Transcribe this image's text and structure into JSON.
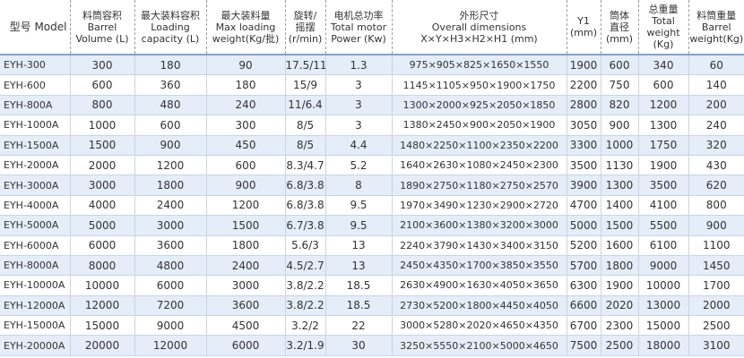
{
  "table": {
    "header": [
      [
        "型号 Model"
      ],
      [
        "料筒容积",
        "Barrel",
        "Volume (L)"
      ],
      [
        "最大装料容积",
        "Loading",
        "capacity (L)"
      ],
      [
        "最大装料量",
        "Max loading",
        "weight(Kg/批)"
      ],
      [
        "旋转/",
        "摇摆",
        "(r/min)"
      ],
      [
        "电机总功率",
        "Total motor",
        "Power (Kw)"
      ],
      [
        "外形尺寸",
        "Overall dimensions",
        "X×Y×H3×H2×H1 (mm)"
      ],
      [
        "Y1",
        "(mm)"
      ],
      [
        "筒体",
        "直径",
        "(mm)"
      ],
      [
        "总重量",
        "Total",
        "weight (Kg)"
      ],
      [
        "料筒重量",
        "Barrel",
        "weight(Kg)"
      ]
    ],
    "rows": [
      [
        "EYH-300",
        "300",
        "180",
        "90",
        "17.5/11",
        "1.3",
        "975×905×825×1650×1550",
        "1900",
        "600",
        "340",
        "60"
      ],
      [
        "EYH-600",
        "600",
        "360",
        "180",
        "15/9",
        "3",
        "1145×1105×950×1900×1750",
        "2200",
        "750",
        "600",
        "140"
      ],
      [
        "EYH-800A",
        "800",
        "480",
        "240",
        "11/6.4",
        "3",
        "1300×2000×925×2050×1850",
        "2800",
        "820",
        "1200",
        "200"
      ],
      [
        "EYH-1000A",
        "1000",
        "600",
        "300",
        "8/5",
        "3",
        "1380×2450×900×2050×1900",
        "3050",
        "900",
        "1300",
        "240"
      ],
      [
        "EYH-1500A",
        "1500",
        "900",
        "450",
        "8/5",
        "4.4",
        "1480×2250×1100×2350×2200",
        "3300",
        "1000",
        "1750",
        "320"
      ],
      [
        "EYH-2000A",
        "2000",
        "1200",
        "600",
        "8.3/4.7",
        "5.2",
        "1640×2630×1080×2450×2300",
        "3500",
        "1130",
        "1900",
        "430"
      ],
      [
        "EYH-3000A",
        "3000",
        "1800",
        "900",
        "6.8/3.8",
        "8",
        "1890×2750×1180×2750×2570",
        "3900",
        "1300",
        "3500",
        "620"
      ],
      [
        "EYH-4000A",
        "4000",
        "2400",
        "1200",
        "6.8/3.8",
        "9.5",
        "1970×3490×1230×2900×2720",
        "4700",
        "1400",
        "4100",
        "800"
      ],
      [
        "EYH-5000A",
        "5000",
        "3000",
        "1500",
        "6.7/3.8",
        "9.5",
        "2100×3600×1380×3200×3000",
        "5000",
        "1500",
        "5500",
        "900"
      ],
      [
        "EYH-6000A",
        "6000",
        "3600",
        "1800",
        "5.6/3",
        "13",
        "2240×3790×1430×3400×3150",
        "5200",
        "1600",
        "6100",
        "1100"
      ],
      [
        "EYH-8000A",
        "8000",
        "4800",
        "2400",
        "4.5/2.7",
        "13",
        "2450×4350×1700×3850×3550",
        "5700",
        "1800",
        "9000",
        "1450"
      ],
      [
        "EYH-10000A",
        "10000",
        "6000",
        "3000",
        "3.8/2.2",
        "18.5",
        "2630×4900×1630×4050×3650",
        "6300",
        "1900",
        "10000",
        "1700"
      ],
      [
        "EYH-12000A",
        "12000",
        "7200",
        "3600",
        "3.8/2.2",
        "18.5",
        "2730×5200×1800×4450×4050",
        "6600",
        "2020",
        "13000",
        "2000"
      ],
      [
        "EYH-15000A",
        "15000",
        "9000",
        "4500",
        "3.2/2",
        "22",
        "3000×5280×2020×4650×4350",
        "6700",
        "2300",
        "15000",
        "2500"
      ],
      [
        "EYH-20000A",
        "20000",
        "12000",
        "6000",
        "3.2/1.9",
        "30",
        "3250×5550×2100×5000×4650",
        "7500",
        "2500",
        "18000",
        "3100"
      ]
    ]
  }
}
